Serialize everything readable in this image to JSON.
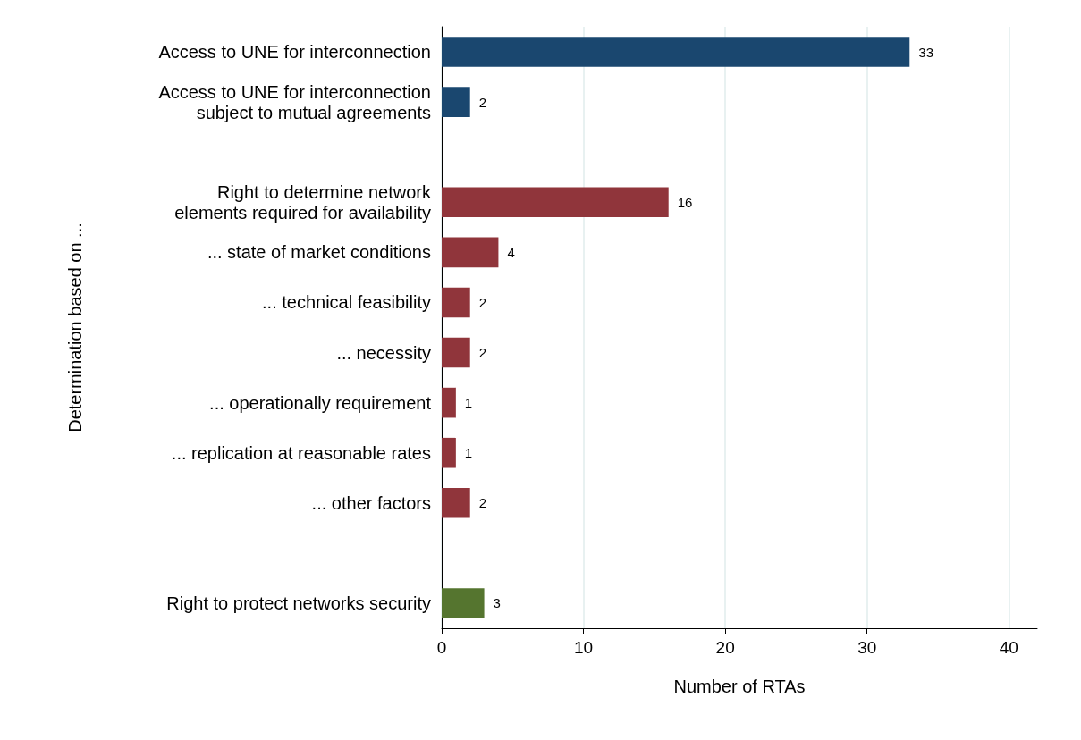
{
  "chart_data": {
    "type": "bar",
    "orientation": "horizontal",
    "xlabel": "Number of RTAs",
    "ylabel": "Determination based on ...",
    "categories": [
      "Access to UNE for interconnection",
      "Access to UNE for interconnection\nsubject to mutual agreements",
      null,
      "Right to determine network\nelements required for availability",
      "... state of market conditions",
      "... technical feasibility",
      "... necessity",
      "... operationally requirement",
      "... replication at reasonable rates",
      "... other factors",
      null,
      "Right to protect networks security"
    ],
    "values": [
      33,
      2,
      null,
      16,
      4,
      2,
      2,
      1,
      1,
      2,
      null,
      3
    ],
    "colors": [
      "#1a476f",
      "#1a476f",
      null,
      "#90353b",
      "#90353b",
      "#90353b",
      "#90353b",
      "#90353b",
      "#90353b",
      "#90353b",
      null,
      "#55752f"
    ],
    "xlim": [
      0,
      42
    ],
    "xticks": [
      0,
      10,
      20,
      30,
      40
    ],
    "grid": "x",
    "data_labels": true
  }
}
